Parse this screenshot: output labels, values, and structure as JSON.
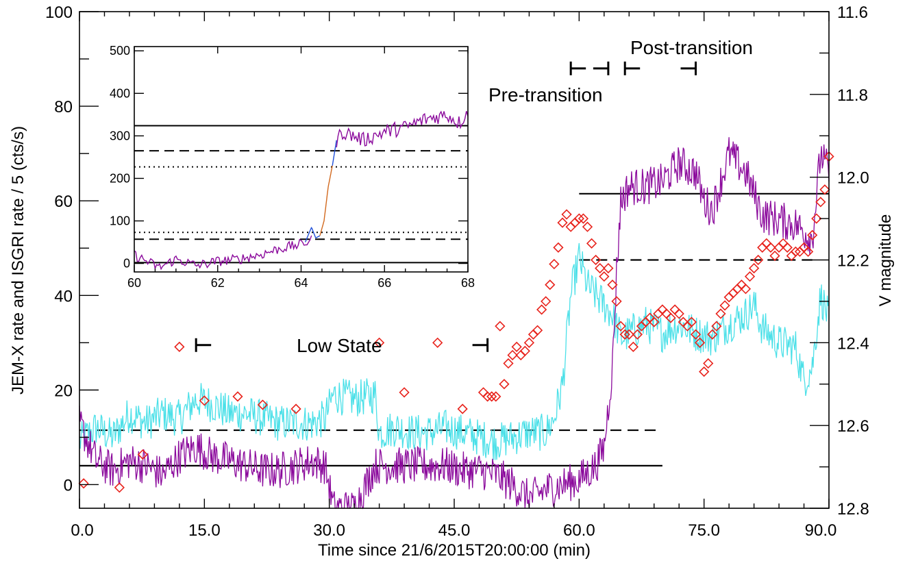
{
  "chart_data": [
    {
      "type": "line",
      "role": "main",
      "xlabel": "Time since 21/6/2015T20:00:00 (min)",
      "ylabel": "JEM-X rate and ISGRI rate / 5 (cts/s)",
      "ylabel_right": "V magnitude",
      "xlim": [
        0,
        90
      ],
      "ylim": [
        -5,
        100
      ],
      "ylim_right": [
        12.8,
        11.6
      ],
      "x_ticks": [
        "0.0",
        "15.0",
        "30.0",
        "45.0",
        "60.0",
        "75.0",
        "90.0"
      ],
      "y_ticks": [
        "0",
        "20",
        "40",
        "60",
        "80",
        "100"
      ],
      "y_right_ticks": [
        "11.6",
        "11.8",
        "12.0",
        "12.2",
        "12.4",
        "12.6",
        "12.8"
      ],
      "annotations": [
        "Low State",
        "Pre-transition",
        "Post-transition"
      ],
      "intervals": [
        {
          "label": "Low State",
          "x0": 14,
          "x1": 49,
          "y": 29.5
        },
        {
          "label": "Pre-transition",
          "x0": 59,
          "x1": 63.5,
          "y": 88
        },
        {
          "label": "Post-transition",
          "x0": 65.5,
          "x1": 74,
          "y": 88
        }
      ],
      "levels": [
        {
          "style": "solid",
          "y": 4,
          "x0": 0,
          "x1": 70
        },
        {
          "style": "dashed",
          "y": 11.5,
          "x0": 0,
          "x1": 69.5
        },
        {
          "style": "solid",
          "y": 61.5,
          "x0": 60,
          "x1": 90
        },
        {
          "style": "dashed",
          "y": 47.5,
          "x0": 60,
          "x1": 88
        }
      ],
      "series": [
        {
          "color": "#4be0e8",
          "desc": "JEM-X",
          "points": [
            [
              0,
              9
            ],
            [
              2,
              12
            ],
            [
              4,
              10
            ],
            [
              6,
              15
            ],
            [
              8,
              13
            ],
            [
              10,
              15
            ],
            [
              12,
              14
            ],
            [
              14,
              18
            ],
            [
              16,
              17
            ],
            [
              18,
              15
            ],
            [
              20,
              15
            ],
            [
              22,
              14
            ],
            [
              24,
              13
            ],
            [
              26,
              13
            ],
            [
              28,
              13
            ],
            [
              29.5,
              14
            ],
            [
              30.5,
              19
            ],
            [
              33,
              18
            ],
            [
              35.5,
              19
            ],
            [
              36,
              11
            ],
            [
              38,
              12
            ],
            [
              40,
              11
            ],
            [
              42,
              11
            ],
            [
              44,
              12
            ],
            [
              46,
              11
            ],
            [
              48,
              10
            ],
            [
              50,
              9
            ],
            [
              52,
              10
            ],
            [
              54,
              11
            ],
            [
              56,
              11
            ],
            [
              57,
              14
            ],
            [
              58,
              21
            ],
            [
              59,
              40
            ],
            [
              60,
              48
            ],
            [
              61,
              42
            ],
            [
              62,
              40
            ],
            [
              63,
              38
            ],
            [
              64,
              36
            ],
            [
              65,
              31
            ],
            [
              66,
              32
            ],
            [
              68,
              34
            ],
            [
              70,
              32
            ],
            [
              72,
              34
            ],
            [
              74,
              32
            ],
            [
              76,
              31
            ],
            [
              78,
              34
            ],
            [
              80,
              36
            ],
            [
              81,
              38
            ],
            [
              82,
              33
            ],
            [
              84,
              30
            ],
            [
              86,
              29
            ],
            [
              87,
              22
            ],
            [
              88,
              25
            ],
            [
              89,
              40
            ],
            [
              90,
              35
            ]
          ],
          "noise": 4
        },
        {
          "color": "#8b0a9c",
          "desc": "ISGRI / 5",
          "points": [
            [
              0,
              13
            ],
            [
              2,
              5
            ],
            [
              4,
              3
            ],
            [
              6,
              5
            ],
            [
              8,
              4
            ],
            [
              10,
              2
            ],
            [
              12,
              6
            ],
            [
              14,
              8
            ],
            [
              16,
              6
            ],
            [
              18,
              5
            ],
            [
              20,
              4
            ],
            [
              22,
              3
            ],
            [
              24,
              3
            ],
            [
              26,
              4
            ],
            [
              28,
              5
            ],
            [
              29.5,
              4
            ],
            [
              30.5,
              -5
            ],
            [
              33,
              -5
            ],
            [
              35.5,
              4
            ],
            [
              38,
              4
            ],
            [
              40,
              4
            ],
            [
              42,
              4
            ],
            [
              44,
              4
            ],
            [
              46,
              3
            ],
            [
              48,
              3
            ],
            [
              50,
              2
            ],
            [
              52,
              0
            ],
            [
              54,
              -3
            ],
            [
              56,
              -1
            ],
            [
              58,
              0
            ],
            [
              60,
              1
            ],
            [
              62,
              4
            ],
            [
              63,
              8
            ],
            [
              64,
              25
            ],
            [
              64.5,
              45
            ],
            [
              65,
              60
            ],
            [
              66,
              63
            ],
            [
              68,
              63
            ],
            [
              70,
              64
            ],
            [
              72,
              68
            ],
            [
              74,
              66
            ],
            [
              75,
              60
            ],
            [
              76,
              58
            ],
            [
              78,
              70
            ],
            [
              80,
              66
            ],
            [
              82,
              57
            ],
            [
              84,
              56
            ],
            [
              86,
              55
            ],
            [
              88,
              52
            ],
            [
              89,
              70
            ],
            [
              90,
              66
            ]
          ],
          "noise": 4
        }
      ],
      "vmag_points": [
        [
          0.5,
          12.74
        ],
        [
          4.8,
          12.75
        ],
        [
          7.6,
          12.67
        ],
        [
          12,
          12.41
        ],
        [
          15,
          12.54
        ],
        [
          19,
          12.53
        ],
        [
          22,
          12.55
        ],
        [
          26,
          12.56
        ],
        [
          36,
          12.4
        ],
        [
          39,
          12.52
        ],
        [
          43,
          12.4
        ],
        [
          46,
          12.56
        ],
        [
          48.5,
          12.52
        ],
        [
          49,
          12.53
        ],
        [
          49.5,
          12.53
        ],
        [
          50,
          12.53
        ],
        [
          50.5,
          12.36
        ],
        [
          51,
          12.5
        ],
        [
          51.5,
          12.45
        ],
        [
          52,
          12.43
        ],
        [
          52.5,
          12.41
        ],
        [
          53,
          12.43
        ],
        [
          53.5,
          12.42
        ],
        [
          54,
          12.4
        ],
        [
          54.5,
          12.38
        ],
        [
          55,
          12.37
        ],
        [
          55.5,
          12.32
        ],
        [
          56,
          12.3
        ],
        [
          56.5,
          12.26
        ],
        [
          57,
          12.21
        ],
        [
          57.5,
          12.17
        ],
        [
          58,
          12.11
        ],
        [
          58.5,
          12.09
        ],
        [
          59,
          12.12
        ],
        [
          59.5,
          12.11
        ],
        [
          60,
          12.1
        ],
        [
          60.5,
          12.1
        ],
        [
          61,
          12.12
        ],
        [
          61.5,
          12.16
        ],
        [
          62,
          12.2
        ],
        [
          62.5,
          12.22
        ],
        [
          63,
          12.24
        ],
        [
          63.5,
          12.22
        ],
        [
          64,
          12.26
        ],
        [
          64.5,
          12.3
        ],
        [
          65,
          12.36
        ],
        [
          65.5,
          12.38
        ],
        [
          66,
          12.38
        ],
        [
          66.5,
          12.41
        ],
        [
          67,
          12.38
        ],
        [
          67.5,
          12.36
        ],
        [
          68,
          12.35
        ],
        [
          68.5,
          12.34
        ],
        [
          69,
          12.35
        ],
        [
          69.5,
          12.33
        ],
        [
          70,
          12.32
        ],
        [
          70.5,
          12.33
        ],
        [
          71,
          12.34
        ],
        [
          71.5,
          12.32
        ],
        [
          72,
          12.33
        ],
        [
          72.5,
          12.35
        ],
        [
          73,
          12.36
        ],
        [
          73.5,
          12.35
        ],
        [
          74,
          12.38
        ],
        [
          74.5,
          12.4
        ],
        [
          75,
          12.47
        ],
        [
          75.5,
          12.45
        ],
        [
          76,
          12.38
        ],
        [
          76.5,
          12.36
        ],
        [
          77,
          12.33
        ],
        [
          77.5,
          12.31
        ],
        [
          78,
          12.29
        ],
        [
          78.5,
          12.28
        ],
        [
          79,
          12.27
        ],
        [
          79.5,
          12.26
        ],
        [
          80,
          12.27
        ],
        [
          80.5,
          12.24
        ],
        [
          81,
          12.22
        ],
        [
          81.5,
          12.2
        ],
        [
          82,
          12.17
        ],
        [
          82.5,
          12.16
        ],
        [
          83,
          12.17
        ],
        [
          83.5,
          12.19
        ],
        [
          84,
          12.17
        ],
        [
          84.5,
          12.16
        ],
        [
          85,
          12.17
        ],
        [
          85.5,
          12.19
        ],
        [
          86,
          12.18
        ],
        [
          86.5,
          12.18
        ],
        [
          87,
          12.17
        ],
        [
          87.5,
          12.18
        ],
        [
          88,
          12.14
        ],
        [
          88.5,
          12.1
        ],
        [
          89,
          12.06
        ],
        [
          89.5,
          12.03
        ],
        [
          90,
          11.95
        ]
      ]
    },
    {
      "type": "line",
      "role": "inset",
      "xlim": [
        60,
        68
      ],
      "ylim": [
        -20,
        510
      ],
      "x_ticks": [
        "60",
        "62",
        "64",
        "66",
        "68"
      ],
      "y_ticks": [
        "0",
        "100",
        "200",
        "300",
        "400",
        "500"
      ],
      "levels": [
        {
          "style": "solid",
          "y": 2
        },
        {
          "style": "dashed",
          "y": 57
        },
        {
          "style": "dotted",
          "y": 73
        },
        {
          "style": "dotted",
          "y": 227
        },
        {
          "style": "dashed",
          "y": 265
        },
        {
          "style": "solid",
          "y": 324
        }
      ],
      "series": [
        {
          "color": "#8b0a9c",
          "points": [
            [
              60,
              20
            ],
            [
              60.3,
              5
            ],
            [
              60.6,
              -10
            ],
            [
              61,
              10
            ],
            [
              61.5,
              -5
            ],
            [
              62,
              5
            ],
            [
              62.5,
              10
            ],
            [
              63,
              20
            ],
            [
              63.5,
              35
            ],
            [
              64,
              45
            ],
            [
              64.25,
              55
            ]
          ],
          "noise": 12
        },
        {
          "color": "#1f4fd8",
          "points": [
            [
              64.1,
              50
            ],
            [
              64.25,
              85
            ],
            [
              64.35,
              60
            ],
            [
              64.45,
              65
            ]
          ],
          "noise": 0
        },
        {
          "color": "#d2691e",
          "points": [
            [
              64.45,
              65
            ],
            [
              64.55,
              100
            ],
            [
              64.65,
              180
            ],
            [
              64.75,
              230
            ]
          ],
          "noise": 0
        },
        {
          "color": "#1f4fd8",
          "points": [
            [
              64.75,
              230
            ],
            [
              64.85,
              290
            ]
          ],
          "noise": 0
        },
        {
          "color": "#8b0a9c",
          "points": [
            [
              64.85,
              290
            ],
            [
              65,
              310
            ],
            [
              65.5,
              290
            ],
            [
              66,
              310
            ],
            [
              66.5,
              320
            ],
            [
              67,
              340
            ],
            [
              67.5,
              350
            ],
            [
              67.8,
              330
            ],
            [
              68,
              360
            ]
          ],
          "noise": 18
        }
      ]
    }
  ]
}
